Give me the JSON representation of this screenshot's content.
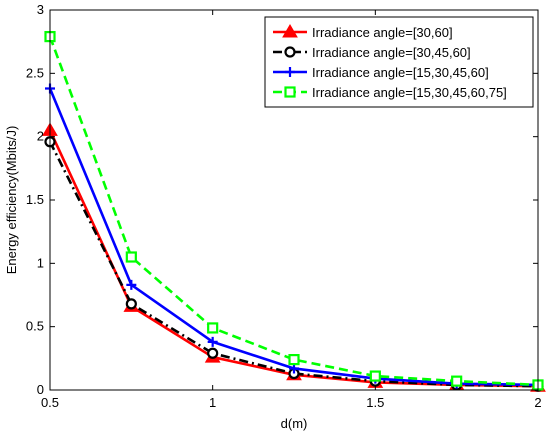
{
  "chart_data": {
    "type": "line",
    "title": "",
    "xlabel": "d(m)",
    "ylabel": "Energy efficiency(Mbits/J)",
    "xlim": [
      0.5,
      2
    ],
    "ylim": [
      0,
      3
    ],
    "xticks": [
      0.5,
      1,
      1.5,
      2
    ],
    "yticks": [
      0,
      0.5,
      1,
      1.5,
      2,
      2.5,
      3
    ],
    "xtick_labels": [
      "0.5",
      "1",
      "1.5",
      "2"
    ],
    "ytick_labels": [
      "0",
      "0.5",
      "1",
      "1.5",
      "2",
      "2.5",
      "3"
    ],
    "grid": false,
    "legend_position": "top-right",
    "x": [
      0.5,
      0.75,
      1.0,
      1.25,
      1.5,
      1.75,
      2.0
    ],
    "series": [
      {
        "name": "Irradiance angle=[30,60]",
        "values": [
          2.05,
          0.66,
          0.26,
          0.12,
          0.06,
          0.04,
          0.03
        ],
        "color": "#ff0000",
        "marker": "triangle",
        "dash": "solid"
      },
      {
        "name": "Irradiance angle=[30,45,60]",
        "values": [
          1.96,
          0.68,
          0.29,
          0.13,
          0.07,
          0.04,
          0.03
        ],
        "color": "#000000",
        "marker": "circle",
        "dash": "dashdot"
      },
      {
        "name": "Irradiance angle=[15,30,45,60]",
        "values": [
          2.38,
          0.83,
          0.38,
          0.17,
          0.09,
          0.05,
          0.04
        ],
        "color": "#0000ff",
        "marker": "plus",
        "dash": "solid"
      },
      {
        "name": "Irradiance angle=[15,30,45,60,75]",
        "values": [
          2.79,
          1.05,
          0.49,
          0.24,
          0.11,
          0.07,
          0.04
        ],
        "color": "#00ff00",
        "marker": "square",
        "dash": "dashed"
      }
    ]
  }
}
